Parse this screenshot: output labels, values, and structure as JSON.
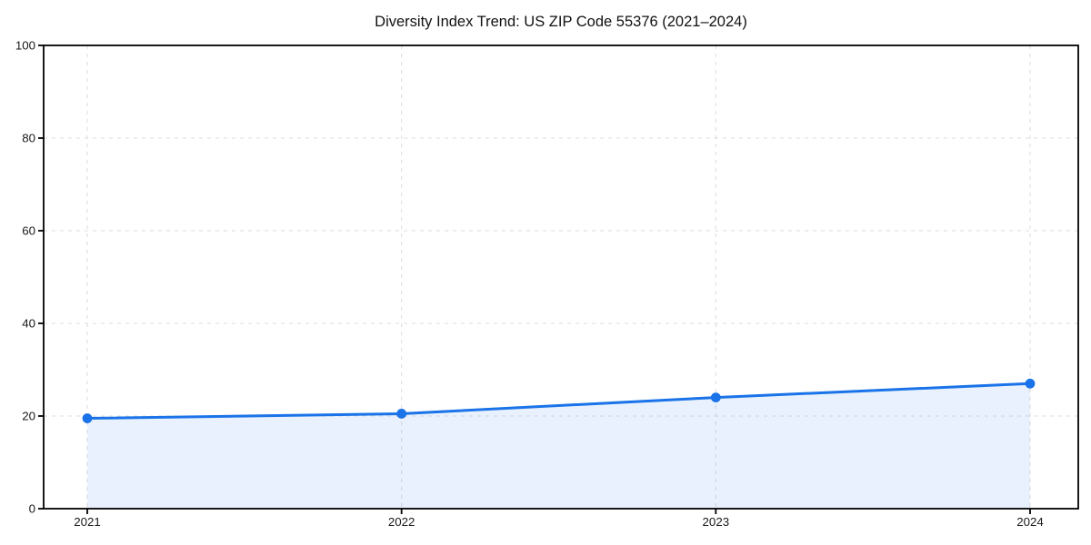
{
  "chart_data": {
    "type": "area",
    "title": "Diversity Index Trend: US ZIP Code 55376 (2021–2024)",
    "categories": [
      "2021",
      "2022",
      "2023",
      "2024"
    ],
    "series": [
      {
        "name": "Diversity Index",
        "values": [
          19.5,
          20.5,
          24.0,
          27.0
        ]
      }
    ],
    "xlabel": "",
    "ylabel": "",
    "ylim": [
      0,
      100
    ],
    "yticks": [
      0,
      20,
      40,
      60,
      80,
      100
    ],
    "grid": "dashed",
    "legend": "none",
    "colors": {
      "line": "#1a73e8",
      "marker": "#1a73e8",
      "fill_rgba": "rgba(26,115,232,0.10)",
      "grid": "#dedede",
      "axis": "#000000",
      "text": "#1a1a1a"
    }
  }
}
